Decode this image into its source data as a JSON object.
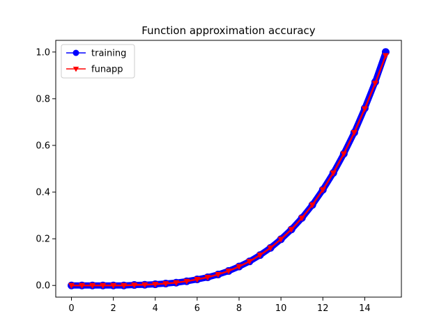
{
  "chart_data": {
    "type": "line",
    "title": "Function approximation accuracy",
    "xlabel": "",
    "ylabel": "",
    "xlim": [
      -0.75,
      15.75
    ],
    "ylim": [
      -0.05,
      1.05
    ],
    "xticks": [
      0,
      2,
      4,
      6,
      8,
      10,
      12,
      14
    ],
    "xtick_labels": [
      "0",
      "2",
      "4",
      "6",
      "8",
      "10",
      "12",
      "14"
    ],
    "yticks": [
      0.0,
      0.2,
      0.4,
      0.6,
      0.8,
      1.0
    ],
    "ytick_labels": [
      "0.0",
      "0.2",
      "0.4",
      "0.6",
      "0.8",
      "1.0"
    ],
    "grid": false,
    "legend_position": "top-left",
    "series": [
      {
        "name": "training",
        "color": "#0000ff",
        "marker": "circle",
        "x": [
          0,
          0.5,
          1,
          1.5,
          2,
          2.5,
          3,
          3.5,
          4,
          4.5,
          5,
          5.5,
          6,
          6.5,
          7,
          7.5,
          8,
          8.5,
          9,
          9.5,
          10,
          10.5,
          11,
          11.5,
          12,
          12.5,
          13,
          13.5,
          14,
          14.5,
          15
        ],
        "y": [
          0,
          0,
          0,
          0,
          0,
          0,
          0.002,
          0.003,
          0.005,
          0.008,
          0.012,
          0.018,
          0.026,
          0.035,
          0.047,
          0.062,
          0.081,
          0.103,
          0.13,
          0.161,
          0.198,
          0.24,
          0.289,
          0.345,
          0.41,
          0.482,
          0.564,
          0.655,
          0.759,
          0.872,
          1.0
        ]
      },
      {
        "name": "funapp",
        "color": "#ff0000",
        "marker": "triangle-down",
        "x": [
          0,
          0.5,
          1,
          1.5,
          2,
          2.5,
          3,
          3.5,
          4,
          4.5,
          5,
          5.5,
          6,
          6.5,
          7,
          7.5,
          8,
          8.5,
          9,
          9.5,
          10,
          10.5,
          11,
          11.5,
          12,
          12.5,
          13,
          13.5,
          14,
          14.5,
          15
        ],
        "y": [
          0,
          0,
          0,
          0,
          0,
          0,
          0.002,
          0.003,
          0.005,
          0.008,
          0.012,
          0.018,
          0.026,
          0.035,
          0.047,
          0.062,
          0.081,
          0.103,
          0.13,
          0.161,
          0.198,
          0.24,
          0.289,
          0.345,
          0.41,
          0.482,
          0.564,
          0.655,
          0.757,
          0.866,
          0.985
        ]
      }
    ]
  }
}
